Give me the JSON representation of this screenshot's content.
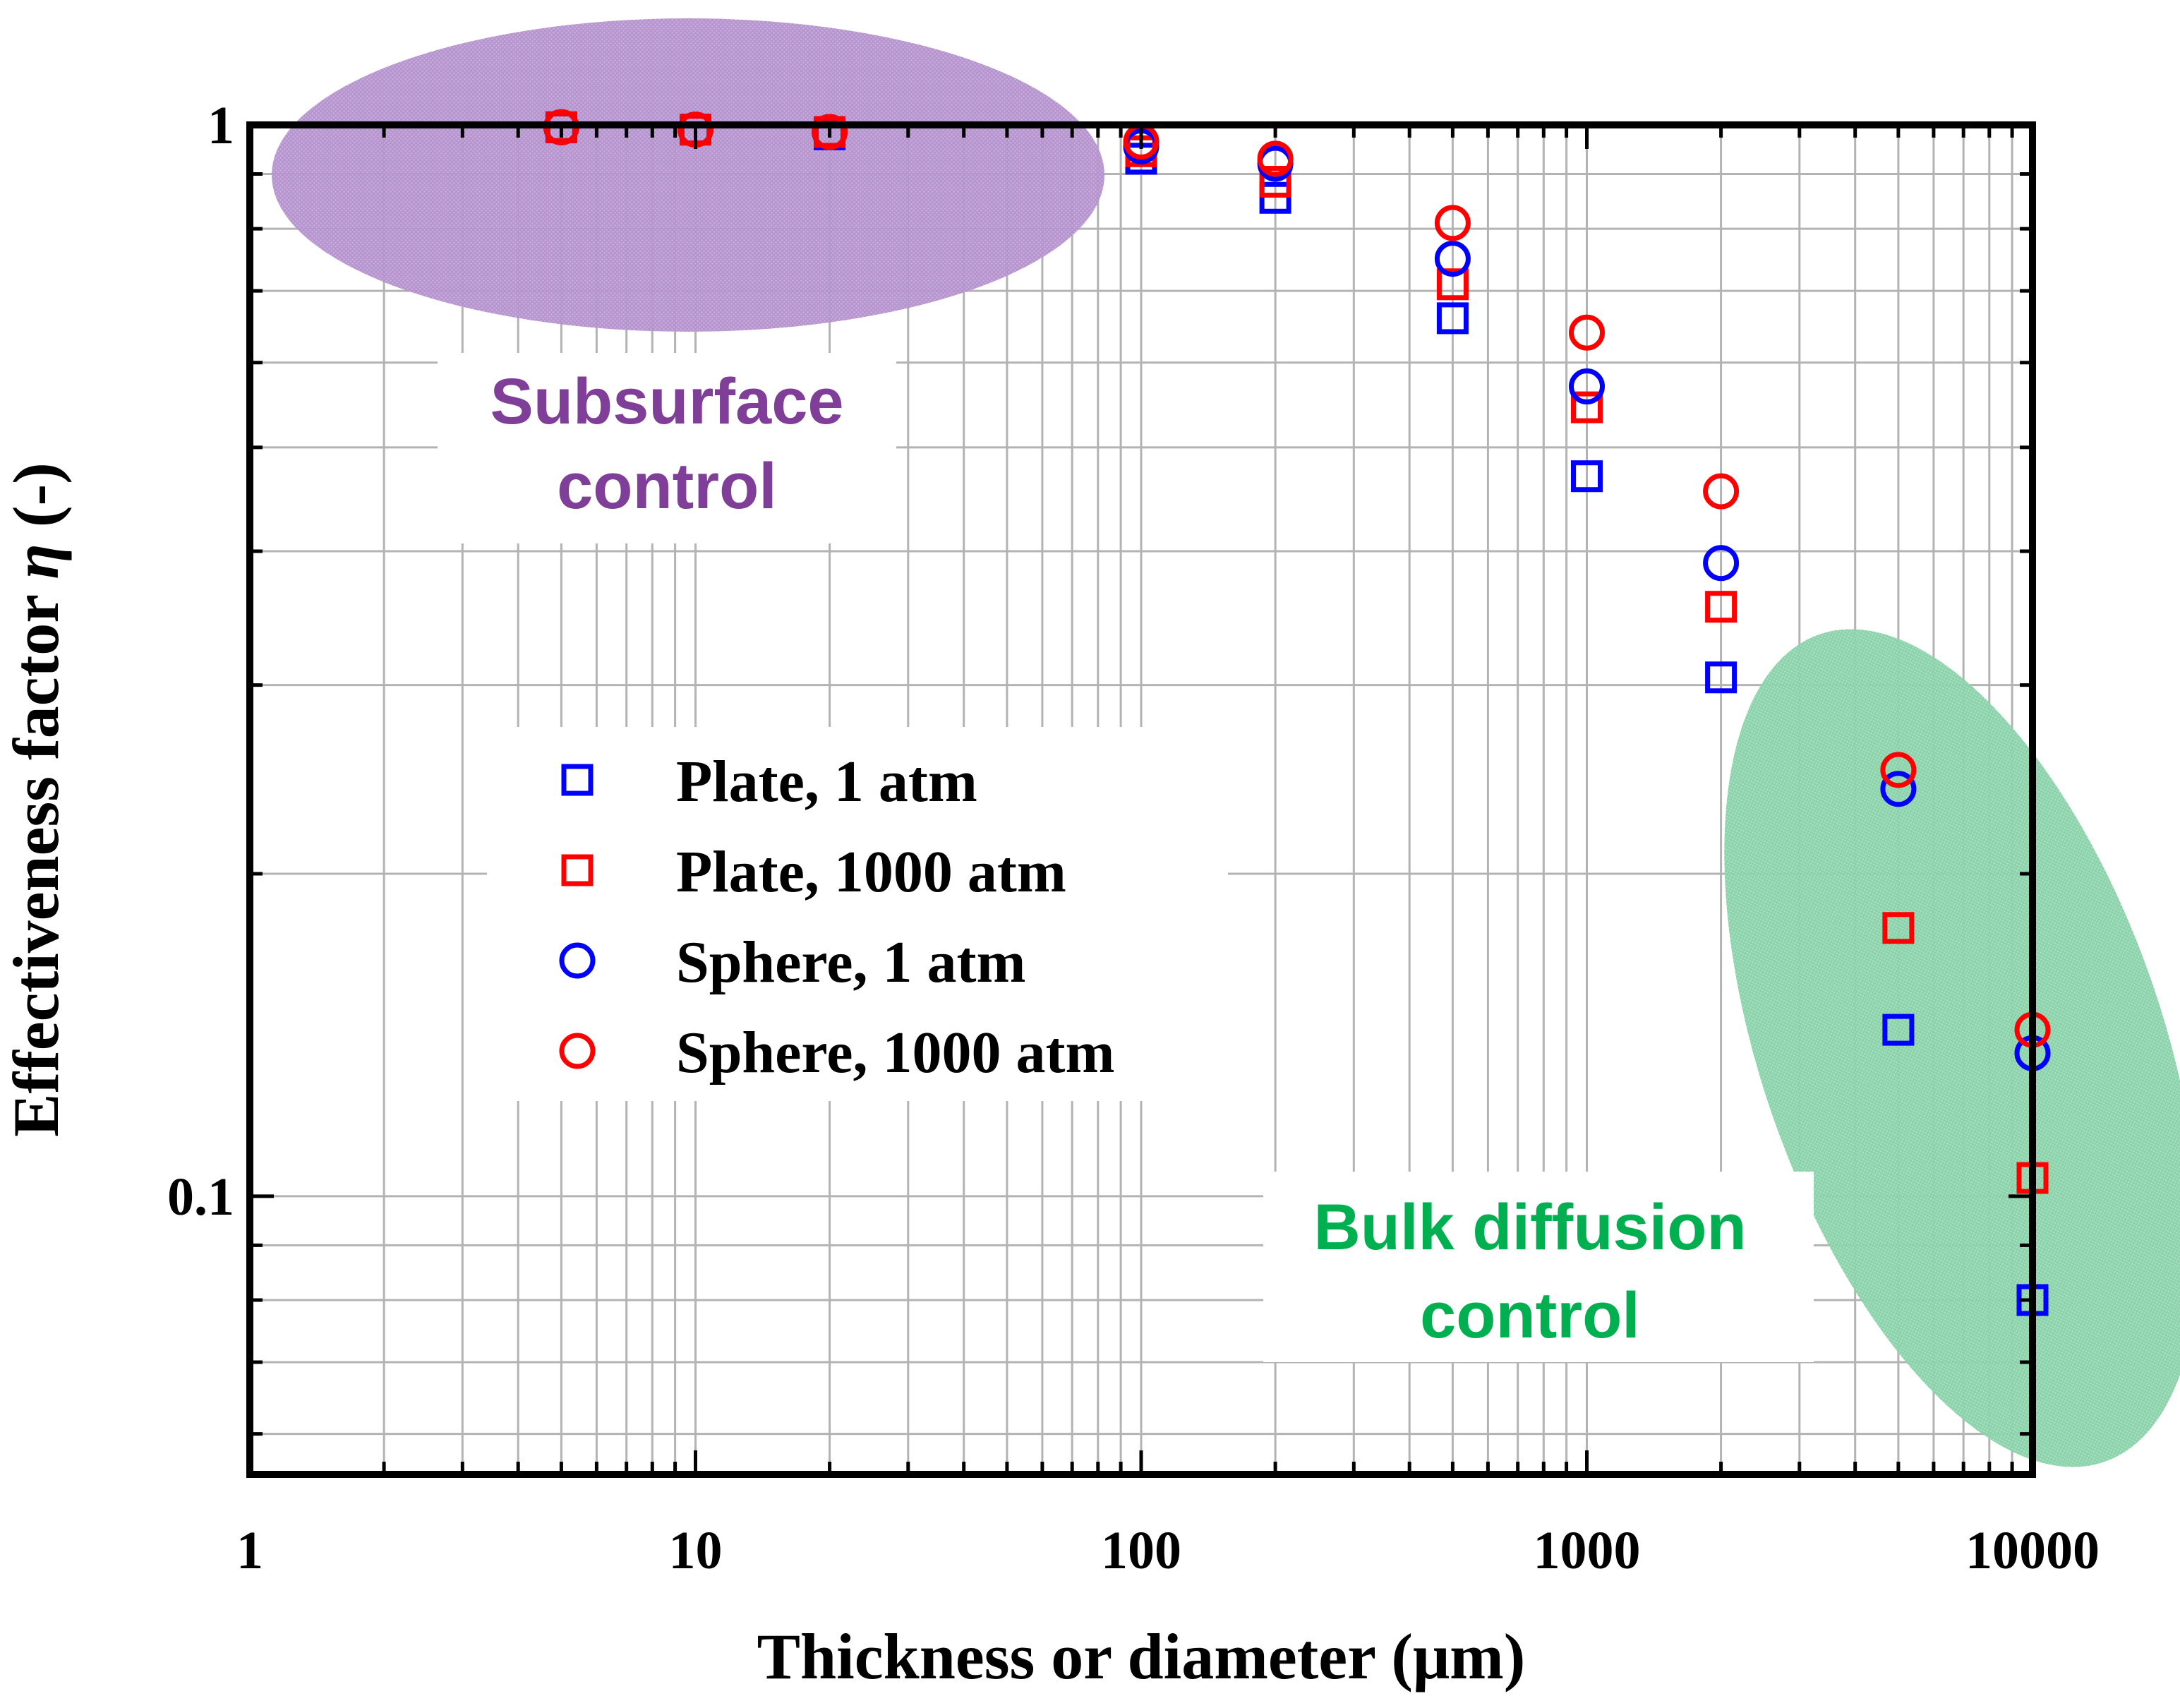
{
  "chart_data": {
    "type": "scatter",
    "xlabel": "Thickness or diameter (μm)",
    "ylabel": "Effectiveness factor",
    "ylabel_symbol": "η",
    "ylabel_unit": "(-)",
    "x_scale": "log",
    "y_scale": "log",
    "xlim": [
      1,
      10000
    ],
    "ylim": [
      0.055,
      1
    ],
    "x_ticks": [
      1,
      10,
      100,
      1000,
      10000
    ],
    "x_tick_labels": [
      "1",
      "10",
      "100",
      "1000",
      "10000"
    ],
    "y_ticks": [
      0.1,
      1
    ],
    "y_tick_labels": [
      "0.1",
      "1"
    ],
    "grid": true,
    "legend_position": "center-left",
    "series": [
      {
        "name": "Plate, 1 atm",
        "marker": "square",
        "color": "#0000ff",
        "x": [
          5,
          10,
          20,
          100,
          200,
          500,
          1000,
          2000,
          5000,
          10000
        ],
        "y": [
          0.995,
          0.99,
          0.98,
          0.93,
          0.855,
          0.66,
          0.47,
          0.305,
          0.143,
          0.08
        ]
      },
      {
        "name": "Plate, 1000 atm",
        "marker": "square",
        "color": "#ff0000",
        "x": [
          5,
          10,
          20,
          100,
          200,
          500,
          1000,
          2000,
          5000,
          10000
        ],
        "y": [
          0.995,
          0.99,
          0.985,
          0.945,
          0.885,
          0.71,
          0.545,
          0.355,
          0.178,
          0.104
        ]
      },
      {
        "name": "Sphere, 1 atm",
        "marker": "circle",
        "color": "#0000ff",
        "x": [
          5,
          10,
          20,
          100,
          200,
          500,
          1000,
          2000,
          5000,
          10000
        ],
        "y": [
          0.995,
          0.99,
          0.985,
          0.955,
          0.92,
          0.75,
          0.57,
          0.39,
          0.24,
          0.136
        ]
      },
      {
        "name": "Sphere, 1000 atm",
        "marker": "circle",
        "color": "#ff0000",
        "x": [
          5,
          10,
          20,
          100,
          200,
          500,
          1000,
          2000,
          5000,
          10000
        ],
        "y": [
          0.995,
          0.99,
          0.985,
          0.965,
          0.93,
          0.81,
          0.64,
          0.455,
          0.25,
          0.143
        ]
      }
    ],
    "annotations": [
      {
        "lines": [
          "Subsurface",
          "control"
        ],
        "color": "#7f3f98",
        "region_color": "#9b59b6"
      },
      {
        "lines": [
          "Bulk diffusion",
          "control"
        ],
        "color": "#00b050",
        "region_color": "#3cb371"
      }
    ]
  }
}
